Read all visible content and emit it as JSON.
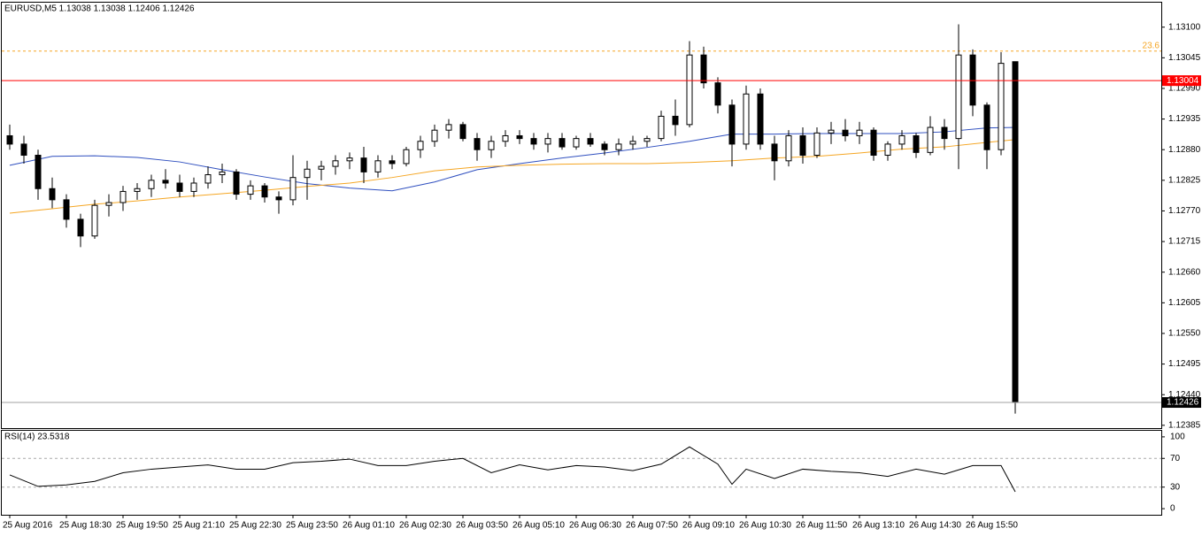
{
  "chart_data": [
    {
      "type": "candlestick",
      "title": "EURUSD,M5  1.13038 1.13038 1.12406 1.12426",
      "open": [
        1.12905,
        1.1289,
        1.1287,
        1.1281,
        1.1279,
        1.12755,
        1.12725,
        1.1278,
        1.12785,
        1.12805,
        1.1281,
        1.12825,
        1.1282,
        1.12805,
        1.1282,
        1.12835,
        1.1284,
        1.128,
        1.12815,
        1.12795,
        1.1279,
        1.1283,
        1.12845,
        1.1285,
        1.1286,
        1.12865,
        1.1284,
        1.1286,
        1.12855,
        1.1288,
        1.12895,
        1.12915,
        1.12925,
        1.129,
        1.1288,
        1.12895,
        1.12905,
        1.129,
        1.1289,
        1.129,
        1.12885,
        1.129,
        1.1289,
        1.1288,
        1.1289,
        1.12895,
        1.129,
        1.1294,
        1.12925,
        1.1305,
        1.13,
        1.1296,
        1.1289,
        1.1298,
        1.1289,
        1.1286,
        1.12905,
        1.1287,
        1.1291,
        1.12915,
        1.12905,
        1.12915,
        1.1287,
        1.1289,
        1.12905,
        1.12875,
        1.1292,
        1.129,
        1.1305,
        1.1296,
        1.1288,
        1.13038
      ],
      "high": [
        1.12925,
        1.12905,
        1.1288,
        1.1283,
        1.128,
        1.12765,
        1.1279,
        1.128,
        1.12815,
        1.1282,
        1.12835,
        1.12845,
        1.12835,
        1.1283,
        1.1285,
        1.12855,
        1.12845,
        1.12825,
        1.1282,
        1.12805,
        1.1287,
        1.1286,
        1.1286,
        1.1287,
        1.12875,
        1.12885,
        1.1287,
        1.1287,
        1.12885,
        1.12905,
        1.12925,
        1.12935,
        1.1293,
        1.1291,
        1.12905,
        1.12915,
        1.12915,
        1.1291,
        1.1291,
        1.1291,
        1.12905,
        1.1291,
        1.12895,
        1.129,
        1.12905,
        1.12905,
        1.1295,
        1.1297,
        1.13075,
        1.13065,
        1.1301,
        1.1297,
        1.12995,
        1.1299,
        1.12905,
        1.12915,
        1.1292,
        1.1292,
        1.1293,
        1.12935,
        1.1293,
        1.1292,
        1.12895,
        1.12915,
        1.1291,
        1.1294,
        1.12935,
        1.13105,
        1.1306,
        1.12965,
        1.13055,
        1.13038
      ],
      "low": [
        1.1288,
        1.12855,
        1.1279,
        1.12775,
        1.1274,
        1.12705,
        1.1272,
        1.1276,
        1.1277,
        1.1279,
        1.12795,
        1.1281,
        1.12795,
        1.12795,
        1.1281,
        1.1282,
        1.1279,
        1.1279,
        1.12785,
        1.12765,
        1.1278,
        1.1279,
        1.12825,
        1.12835,
        1.12845,
        1.1282,
        1.1283,
        1.12845,
        1.1285,
        1.12865,
        1.12885,
        1.129,
        1.12895,
        1.1286,
        1.12865,
        1.12885,
        1.1289,
        1.1288,
        1.12875,
        1.1288,
        1.1288,
        1.12885,
        1.1287,
        1.1287,
        1.1288,
        1.12885,
        1.12895,
        1.12905,
        1.1292,
        1.1299,
        1.12945,
        1.1285,
        1.1288,
        1.1288,
        1.12825,
        1.1285,
        1.12855,
        1.12865,
        1.1289,
        1.12895,
        1.1289,
        1.1286,
        1.1286,
        1.1288,
        1.12865,
        1.1287,
        1.1288,
        1.12845,
        1.1294,
        1.12845,
        1.1287,
        1.12406
      ],
      "close": [
        1.1289,
        1.1287,
        1.1281,
        1.1279,
        1.12755,
        1.12725,
        1.1278,
        1.12785,
        1.12805,
        1.1281,
        1.12825,
        1.1282,
        1.12805,
        1.1282,
        1.12835,
        1.1284,
        1.128,
        1.12815,
        1.12795,
        1.1279,
        1.1283,
        1.12845,
        1.1285,
        1.1286,
        1.12865,
        1.1284,
        1.1286,
        1.12855,
        1.1288,
        1.12895,
        1.12915,
        1.12925,
        1.129,
        1.1288,
        1.12895,
        1.12905,
        1.129,
        1.1289,
        1.129,
        1.12885,
        1.129,
        1.1289,
        1.1288,
        1.1289,
        1.12895,
        1.129,
        1.1294,
        1.12925,
        1.1305,
        1.13,
        1.1296,
        1.1289,
        1.1298,
        1.1289,
        1.1286,
        1.12905,
        1.1287,
        1.1291,
        1.12915,
        1.12905,
        1.12915,
        1.1287,
        1.1289,
        1.12905,
        1.12875,
        1.1292,
        1.129,
        1.1305,
        1.1296,
        1.1288,
        1.13035,
        1.12426
      ],
      "ma": [
        {
          "color": "#2f4fbf",
          "x": [
            0,
            3,
            6,
            9,
            12,
            15,
            18,
            21,
            24,
            27,
            30,
            33,
            36,
            39,
            42,
            45,
            48,
            51,
            54,
            57,
            60,
            63,
            66,
            69,
            71
          ],
          "values": [
            1.12852,
            1.12868,
            1.12869,
            1.12866,
            1.12858,
            1.12844,
            1.12831,
            1.12819,
            1.12811,
            1.12806,
            1.12822,
            1.12844,
            1.12855,
            1.12865,
            1.12874,
            1.12884,
            1.12895,
            1.12908,
            1.12908,
            1.12909,
            1.12909,
            1.12909,
            1.12912,
            1.12919,
            1.1292
          ]
        },
        {
          "color": "#f5a623",
          "x": [
            0,
            3,
            6,
            9,
            12,
            15,
            18,
            21,
            24,
            27,
            30,
            33,
            36,
            39,
            42,
            45,
            48,
            51,
            54,
            57,
            60,
            63,
            66,
            69,
            71
          ],
          "values": [
            1.12766,
            1.12774,
            1.12782,
            1.12788,
            1.12795,
            1.12801,
            1.12807,
            1.12814,
            1.1282,
            1.1283,
            1.12842,
            1.12849,
            1.12852,
            1.12854,
            1.12855,
            1.12855,
            1.12857,
            1.1286,
            1.12865,
            1.12868,
            1.12874,
            1.12881,
            1.12885,
            1.12893,
            1.12898
          ]
        }
      ],
      "hlines": [
        {
          "value": 1.13004,
          "color": "#ff0000"
        },
        {
          "value": 1.12426,
          "color": "#a0a0a0"
        }
      ],
      "fib": {
        "value": 1.13057,
        "label": "23.6",
        "color": "#f5a623"
      },
      "ylim": [
        1.1238,
        1.13144
      ],
      "yticks": [
        {
          "value": 1.131,
          "label": "1.13100"
        },
        {
          "value": 1.13045,
          "label": "1.13045"
        },
        {
          "value": 1.1299,
          "label": "1.12990"
        },
        {
          "value": 1.12935,
          "label": "1.12935"
        },
        {
          "value": 1.1288,
          "label": "1.12880"
        },
        {
          "value": 1.12825,
          "label": "1.12825"
        },
        {
          "value": 1.1277,
          "label": "1.12770"
        },
        {
          "value": 1.12715,
          "label": "1.12715"
        },
        {
          "value": 1.1266,
          "label": "1.12660"
        },
        {
          "value": 1.12605,
          "label": "1.12605"
        },
        {
          "value": 1.1255,
          "label": "1.12550"
        },
        {
          "value": 1.12495,
          "label": "1.12495"
        },
        {
          "value": 1.1244,
          "label": "1.12440"
        },
        {
          "value": 1.12385,
          "label": "1.12385"
        }
      ],
      "xticks": [
        {
          "value": 0,
          "label": "25 Aug 2016"
        },
        {
          "value": 4,
          "label": "25 Aug 18:30"
        },
        {
          "value": 8,
          "label": "25 Aug 19:50"
        },
        {
          "value": 12,
          "label": "25 Aug 21:10"
        },
        {
          "value": 16,
          "label": "25 Aug 22:30"
        },
        {
          "value": 20,
          "label": "25 Aug 23:50"
        },
        {
          "value": 24,
          "label": "26 Aug 01:10"
        },
        {
          "value": 28,
          "label": "26 Aug 02:30"
        },
        {
          "value": 32,
          "label": "26 Aug 03:50"
        },
        {
          "value": 36,
          "label": "26 Aug 05:10"
        },
        {
          "value": 40,
          "label": "26 Aug 06:30"
        },
        {
          "value": 44,
          "label": "26 Aug 07:50"
        },
        {
          "value": 48,
          "label": "26 Aug 09:10"
        },
        {
          "value": 52,
          "label": "26 Aug 10:30"
        },
        {
          "value": 56,
          "label": "26 Aug 11:50"
        },
        {
          "value": 60,
          "label": "26 Aug 13:10"
        },
        {
          "value": 64,
          "label": "26 Aug 14:30"
        },
        {
          "value": 68,
          "label": "26 Aug 15:50"
        }
      ]
    },
    {
      "type": "line",
      "title": "RSI(14) 23.5318",
      "color": "#000000",
      "x": [
        0,
        2,
        4,
        6,
        8,
        10,
        12,
        14,
        16,
        18,
        20,
        22,
        24,
        26,
        28,
        30,
        32,
        34,
        36,
        38,
        40,
        42,
        44,
        46,
        48,
        50,
        51,
        52,
        54,
        56,
        58,
        60,
        62,
        64,
        66,
        68,
        70,
        71
      ],
      "values": [
        47,
        31,
        33,
        38,
        50,
        55,
        58,
        61,
        55,
        55,
        64,
        66,
        69,
        60,
        60,
        66,
        70,
        50,
        61,
        54,
        60,
        58,
        53,
        62,
        86,
        62,
        34,
        55,
        42,
        55,
        52,
        50,
        45,
        55,
        48,
        60,
        60,
        23.5318
      ],
      "levels": [
        70,
        30
      ],
      "ylim": [
        -8.5,
        108.5
      ],
      "yticks": [
        100,
        70,
        30,
        0
      ]
    }
  ]
}
